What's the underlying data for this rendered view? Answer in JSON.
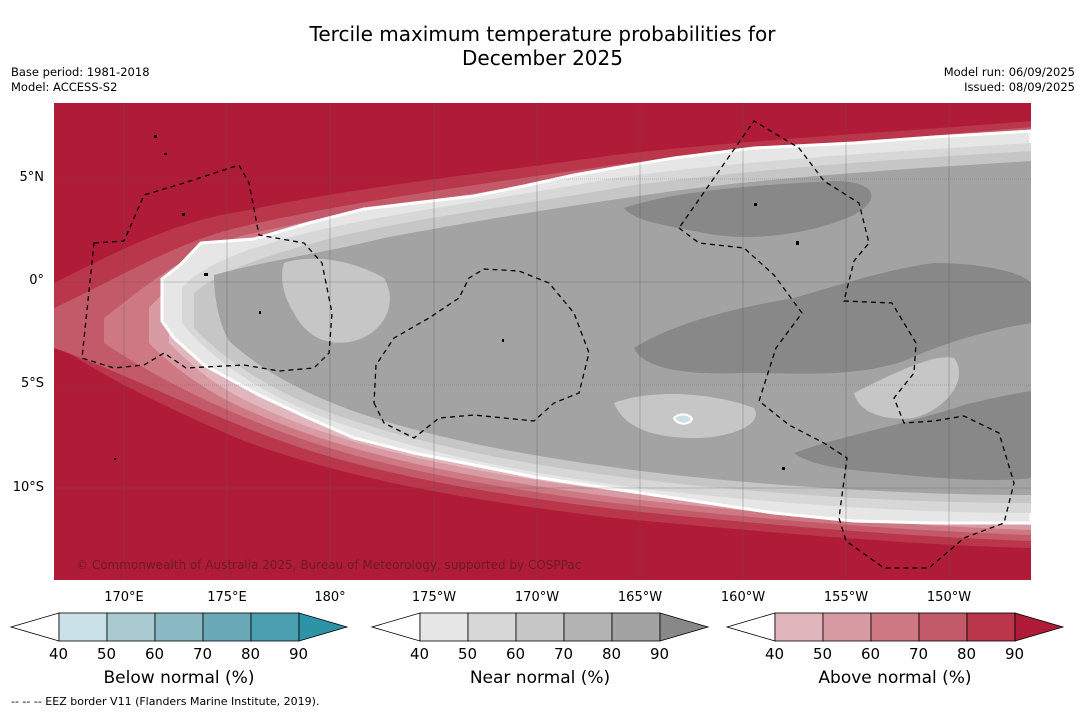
{
  "title_line1": "Tercile maximum temperature probabilities for",
  "title_line2": "December 2025",
  "meta_left": {
    "base_period": "Base period: 1981-2018",
    "model": "Model: ACCESS-S2"
  },
  "meta_right": {
    "model_run": "Model run: 06/09/2025",
    "issued": "Issued: 08/09/2025"
  },
  "lat_labels": [
    "5°N",
    "0°",
    "5°S",
    "10°S"
  ],
  "lon_labels": [
    "170°E",
    "175°E",
    "180°",
    "175°W",
    "170°W",
    "165°W",
    "160°W",
    "155°W",
    "150°W"
  ],
  "copyright": "© Commonwealth of Australia 2025, Bureau of Meteorology, supported by COSPPac",
  "colorbars": [
    {
      "title": "Below normal (%)",
      "ticks": [
        "40",
        "50",
        "60",
        "70",
        "80",
        "90"
      ],
      "colors": [
        "#c9e1e7",
        "#a8c9d0",
        "#8ab8c3",
        "#6aaab8",
        "#4a9fb0",
        "#2e93a6"
      ]
    },
    {
      "title": "Near normal (%)",
      "ticks": [
        "40",
        "50",
        "60",
        "70",
        "80",
        "90"
      ],
      "colors": [
        "#e6e6e6",
        "#d7d7d7",
        "#c6c6c6",
        "#b3b3b3",
        "#a3a3a3",
        "#888888"
      ]
    },
    {
      "title": "Above normal (%)",
      "ticks": [
        "40",
        "50",
        "60",
        "70",
        "80",
        "90"
      ],
      "colors": [
        "#e2b6bd",
        "#d89aa3",
        "#cd7883",
        "#c35a69",
        "#b9364b",
        "#b01c38"
      ]
    }
  ],
  "footnote": "--  --  -- EEZ border V11 (Flanders Marine Institute, 2019).",
  "map_colors": {
    "above90": "#b01c38",
    "above80": "#b9364b",
    "above70": "#c35a69",
    "above60": "#cd7883",
    "above50": "#d89aa3",
    "above40": "#e2b6bd",
    "near40": "#e6e6e6",
    "near50": "#d7d7d7",
    "near60": "#c6c6c6",
    "near70": "#b3b3b3",
    "near80": "#a3a3a3",
    "near90": "#888888",
    "below40": "#c9e1e7"
  }
}
